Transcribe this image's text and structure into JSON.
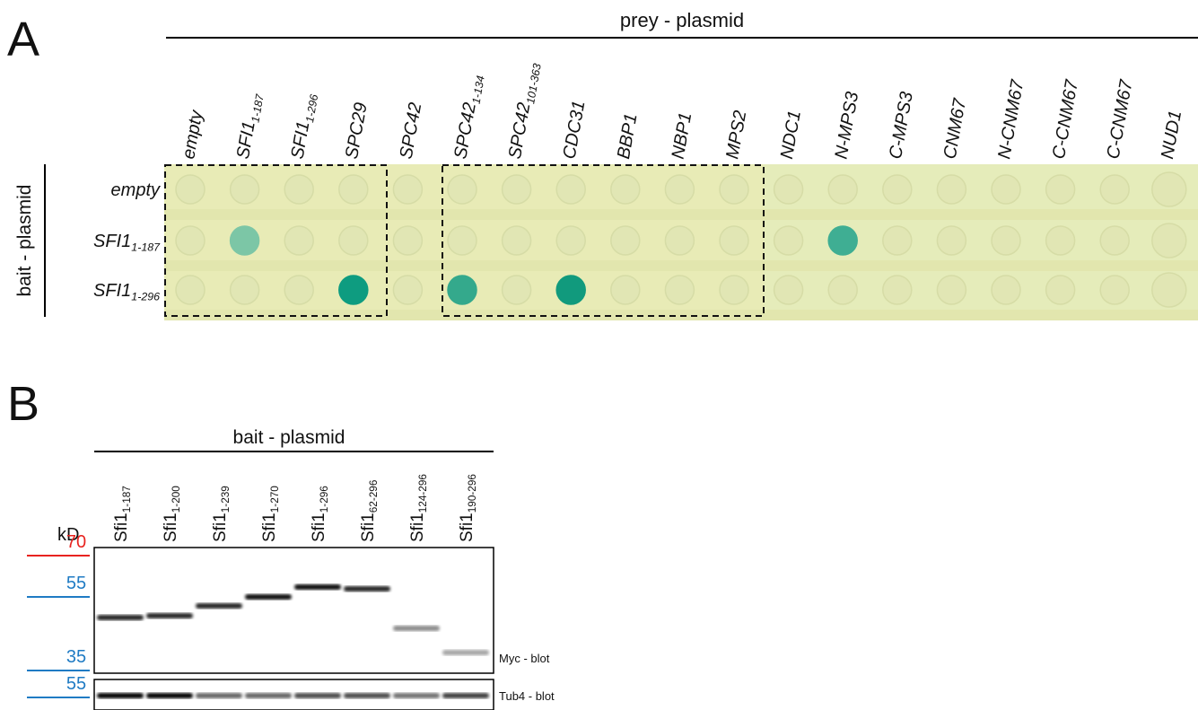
{
  "panel_a": {
    "label": "A",
    "prey_header": "prey - plasmid",
    "bait_header": "bait - plasmid",
    "prey": [
      {
        "name": "empty"
      },
      {
        "name": "SFI1",
        "sub": "1-187"
      },
      {
        "name": "SFI1",
        "sub": "1-296"
      },
      {
        "name": "SPC29"
      },
      {
        "name": "SPC42"
      },
      {
        "name": "SPC42",
        "sub": "1-134"
      },
      {
        "name": "SPC42",
        "sub": "101-363"
      },
      {
        "name": "CDC31"
      },
      {
        "name": "BBP1"
      },
      {
        "name": "NBP1"
      },
      {
        "name": "MPS2"
      },
      {
        "name": "NDC1"
      },
      {
        "name": "N-MPS3"
      },
      {
        "name": "C-MPS3"
      },
      {
        "name": "CNM67"
      },
      {
        "name": "N-CNM67"
      },
      {
        "name": "C-CNM67"
      },
      {
        "name": "C-CNM67"
      },
      {
        "name": "NUD1"
      }
    ],
    "bait": [
      {
        "name": "empty"
      },
      {
        "name": "SFI1",
        "sub": "1-187"
      },
      {
        "name": "SFI1",
        "sub": "1-296"
      }
    ]
  },
  "panel_b": {
    "label": "B",
    "header": "bait - plasmid",
    "kd_label": "kD",
    "markers": [
      "70",
      "55",
      "35",
      "55"
    ],
    "lanes": [
      {
        "name": "Sfi1",
        "sub": "1-187"
      },
      {
        "name": "Sfi1",
        "sub": "1-200"
      },
      {
        "name": "Sfi1",
        "sub": "1-239"
      },
      {
        "name": "Sfi1",
        "sub": "1-270"
      },
      {
        "name": "Sfi1",
        "sub": "1-296"
      },
      {
        "name": "Sfi1",
        "sub": "62-296"
      },
      {
        "name": "Sfi1",
        "sub": "124-296"
      },
      {
        "name": "Sfi1",
        "sub": "190-296"
      }
    ],
    "blots": [
      "Myc - blot",
      "Tub4 - blot"
    ]
  }
}
